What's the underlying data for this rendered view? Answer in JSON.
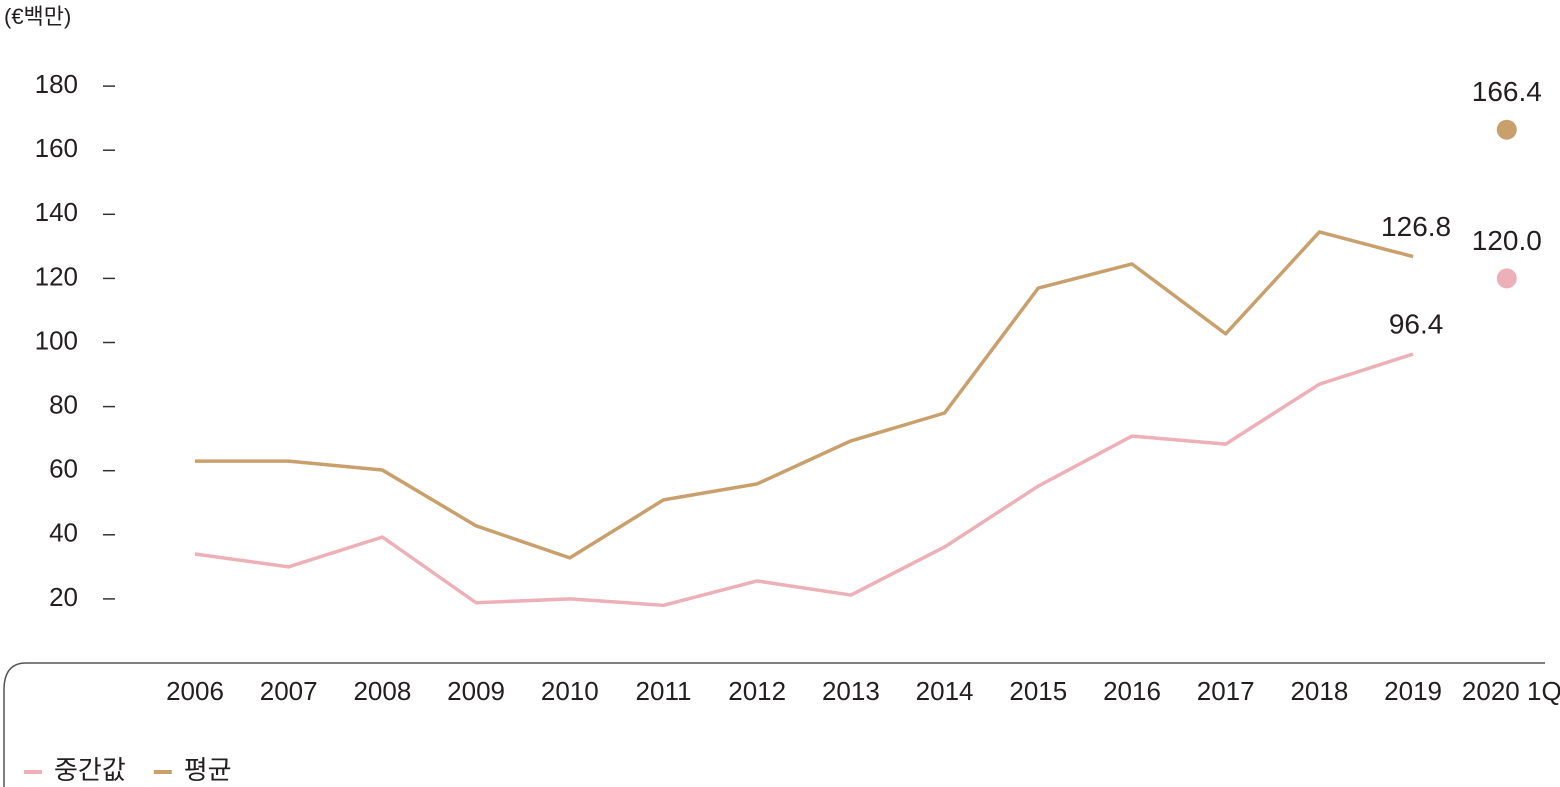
{
  "chart_data": {
    "type": "line",
    "unit_label": "(€백만)",
    "categories": [
      "2006",
      "2007",
      "2008",
      "2009",
      "2010",
      "2011",
      "2012",
      "2013",
      "2014",
      "2015",
      "2016",
      "2017",
      "2018",
      "2019",
      "2020 1Q"
    ],
    "series": [
      {
        "name": "중간값",
        "color": "#eeb0b8",
        "values": [
          34,
          30,
          39.3,
          18.8,
          20,
          18,
          25.6,
          21.2,
          36.2,
          55.2,
          70.8,
          68.3,
          87,
          96.4,
          120.0
        ],
        "value_labels": [
          null,
          null,
          null,
          null,
          null,
          null,
          null,
          null,
          null,
          null,
          null,
          null,
          null,
          "96.4",
          "120.0"
        ]
      },
      {
        "name": "평균",
        "color": "#c9a06c",
        "values": [
          63,
          63,
          60.2,
          42.8,
          32.8,
          50.9,
          55.9,
          69.3,
          78,
          117,
          124.5,
          102.7,
          134.5,
          126.8,
          166.4
        ],
        "value_labels": [
          null,
          null,
          null,
          null,
          null,
          null,
          null,
          null,
          null,
          null,
          null,
          null,
          null,
          "126.8",
          "166.4"
        ]
      }
    ],
    "ylim": [
      0,
      200
    ],
    "yticks": [
      20,
      40,
      60,
      80,
      100,
      120,
      140,
      160,
      180
    ],
    "legend": "bottom-left"
  }
}
